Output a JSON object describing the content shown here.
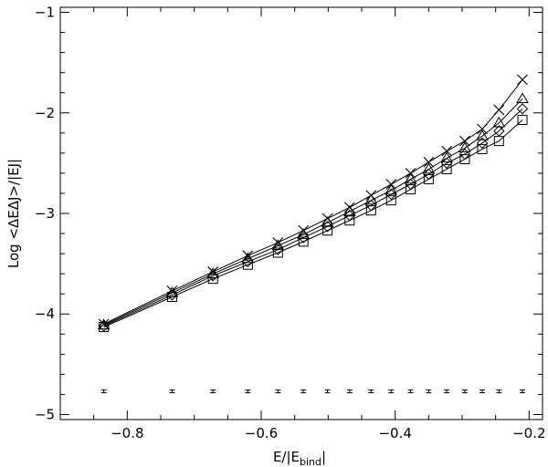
{
  "chart_data": {
    "type": "line",
    "xlabel_main": "E/|E",
    "xlabel_sub": "bind",
    "xlabel_end": "|",
    "ylabel": "Log <ΔEΔJ>/|EJ|",
    "xlim": [
      -0.9,
      -0.18
    ],
    "ylim": [
      -5.05,
      -0.95
    ],
    "x_ticks": [
      -0.8,
      -0.6,
      -0.4,
      -0.2
    ],
    "x_tick_labels": [
      "−0.8",
      "−0.6",
      "−0.4",
      "−0.2"
    ],
    "y_ticks": [
      -5,
      -4,
      -3,
      -2,
      -1
    ],
    "y_tick_labels": [
      "−5",
      "−4",
      "−3",
      "−2",
      "−1"
    ],
    "x": [
      -0.835,
      -0.733,
      -0.672,
      -0.62,
      -0.575,
      -0.537,
      -0.501,
      -0.468,
      -0.436,
      -0.406,
      -0.377,
      -0.35,
      -0.323,
      -0.296,
      -0.27,
      -0.245,
      -0.21
    ],
    "series": [
      {
        "marker": "x",
        "values": [
          -4.1,
          -3.77,
          -3.58,
          -3.42,
          -3.29,
          -3.17,
          -3.05,
          -2.94,
          -2.82,
          -2.71,
          -2.6,
          -2.49,
          -2.38,
          -2.28,
          -2.16,
          -1.97,
          -1.67
        ]
      },
      {
        "marker": "triangle",
        "values": [
          -4.11,
          -3.79,
          -3.6,
          -3.45,
          -3.32,
          -3.21,
          -3.09,
          -2.98,
          -2.87,
          -2.77,
          -2.66,
          -2.56,
          -2.45,
          -2.35,
          -2.23,
          -2.1,
          -1.86
        ]
      },
      {
        "marker": "diamond",
        "values": [
          -4.12,
          -3.81,
          -3.62,
          -3.48,
          -3.36,
          -3.24,
          -3.13,
          -3.02,
          -2.92,
          -2.81,
          -2.71,
          -2.61,
          -2.5,
          -2.41,
          -2.3,
          -2.18,
          -1.96
        ]
      },
      {
        "marker": "square",
        "values": [
          -4.13,
          -3.83,
          -3.65,
          -3.51,
          -3.39,
          -3.28,
          -3.17,
          -3.07,
          -2.97,
          -2.87,
          -2.76,
          -2.66,
          -2.56,
          -2.46,
          -2.36,
          -2.28,
          -2.07
        ]
      }
    ],
    "baseline_y": -4.77,
    "grid": false
  }
}
